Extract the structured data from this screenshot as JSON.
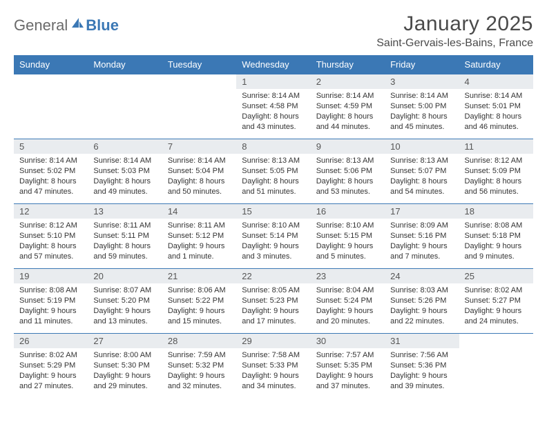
{
  "brand": {
    "general": "General",
    "blue": "Blue"
  },
  "title": "January 2025",
  "location": "Saint-Gervais-les-Bains, France",
  "colors": {
    "accent": "#3b78b5",
    "daynum_bg": "#e9ecef",
    "text": "#333333"
  },
  "weekdays": [
    "Sunday",
    "Monday",
    "Tuesday",
    "Wednesday",
    "Thursday",
    "Friday",
    "Saturday"
  ],
  "weeks": [
    [
      null,
      null,
      null,
      {
        "n": "1",
        "sr": "Sunrise: 8:14 AM",
        "ss": "Sunset: 4:58 PM",
        "d1": "Daylight: 8 hours",
        "d2": "and 43 minutes."
      },
      {
        "n": "2",
        "sr": "Sunrise: 8:14 AM",
        "ss": "Sunset: 4:59 PM",
        "d1": "Daylight: 8 hours",
        "d2": "and 44 minutes."
      },
      {
        "n": "3",
        "sr": "Sunrise: 8:14 AM",
        "ss": "Sunset: 5:00 PM",
        "d1": "Daylight: 8 hours",
        "d2": "and 45 minutes."
      },
      {
        "n": "4",
        "sr": "Sunrise: 8:14 AM",
        "ss": "Sunset: 5:01 PM",
        "d1": "Daylight: 8 hours",
        "d2": "and 46 minutes."
      }
    ],
    [
      {
        "n": "5",
        "sr": "Sunrise: 8:14 AM",
        "ss": "Sunset: 5:02 PM",
        "d1": "Daylight: 8 hours",
        "d2": "and 47 minutes."
      },
      {
        "n": "6",
        "sr": "Sunrise: 8:14 AM",
        "ss": "Sunset: 5:03 PM",
        "d1": "Daylight: 8 hours",
        "d2": "and 49 minutes."
      },
      {
        "n": "7",
        "sr": "Sunrise: 8:14 AM",
        "ss": "Sunset: 5:04 PM",
        "d1": "Daylight: 8 hours",
        "d2": "and 50 minutes."
      },
      {
        "n": "8",
        "sr": "Sunrise: 8:13 AM",
        "ss": "Sunset: 5:05 PM",
        "d1": "Daylight: 8 hours",
        "d2": "and 51 minutes."
      },
      {
        "n": "9",
        "sr": "Sunrise: 8:13 AM",
        "ss": "Sunset: 5:06 PM",
        "d1": "Daylight: 8 hours",
        "d2": "and 53 minutes."
      },
      {
        "n": "10",
        "sr": "Sunrise: 8:13 AM",
        "ss": "Sunset: 5:07 PM",
        "d1": "Daylight: 8 hours",
        "d2": "and 54 minutes."
      },
      {
        "n": "11",
        "sr": "Sunrise: 8:12 AM",
        "ss": "Sunset: 5:09 PM",
        "d1": "Daylight: 8 hours",
        "d2": "and 56 minutes."
      }
    ],
    [
      {
        "n": "12",
        "sr": "Sunrise: 8:12 AM",
        "ss": "Sunset: 5:10 PM",
        "d1": "Daylight: 8 hours",
        "d2": "and 57 minutes."
      },
      {
        "n": "13",
        "sr": "Sunrise: 8:11 AM",
        "ss": "Sunset: 5:11 PM",
        "d1": "Daylight: 8 hours",
        "d2": "and 59 minutes."
      },
      {
        "n": "14",
        "sr": "Sunrise: 8:11 AM",
        "ss": "Sunset: 5:12 PM",
        "d1": "Daylight: 9 hours",
        "d2": "and 1 minute."
      },
      {
        "n": "15",
        "sr": "Sunrise: 8:10 AM",
        "ss": "Sunset: 5:14 PM",
        "d1": "Daylight: 9 hours",
        "d2": "and 3 minutes."
      },
      {
        "n": "16",
        "sr": "Sunrise: 8:10 AM",
        "ss": "Sunset: 5:15 PM",
        "d1": "Daylight: 9 hours",
        "d2": "and 5 minutes."
      },
      {
        "n": "17",
        "sr": "Sunrise: 8:09 AM",
        "ss": "Sunset: 5:16 PM",
        "d1": "Daylight: 9 hours",
        "d2": "and 7 minutes."
      },
      {
        "n": "18",
        "sr": "Sunrise: 8:08 AM",
        "ss": "Sunset: 5:18 PM",
        "d1": "Daylight: 9 hours",
        "d2": "and 9 minutes."
      }
    ],
    [
      {
        "n": "19",
        "sr": "Sunrise: 8:08 AM",
        "ss": "Sunset: 5:19 PM",
        "d1": "Daylight: 9 hours",
        "d2": "and 11 minutes."
      },
      {
        "n": "20",
        "sr": "Sunrise: 8:07 AM",
        "ss": "Sunset: 5:20 PM",
        "d1": "Daylight: 9 hours",
        "d2": "and 13 minutes."
      },
      {
        "n": "21",
        "sr": "Sunrise: 8:06 AM",
        "ss": "Sunset: 5:22 PM",
        "d1": "Daylight: 9 hours",
        "d2": "and 15 minutes."
      },
      {
        "n": "22",
        "sr": "Sunrise: 8:05 AM",
        "ss": "Sunset: 5:23 PM",
        "d1": "Daylight: 9 hours",
        "d2": "and 17 minutes."
      },
      {
        "n": "23",
        "sr": "Sunrise: 8:04 AM",
        "ss": "Sunset: 5:24 PM",
        "d1": "Daylight: 9 hours",
        "d2": "and 20 minutes."
      },
      {
        "n": "24",
        "sr": "Sunrise: 8:03 AM",
        "ss": "Sunset: 5:26 PM",
        "d1": "Daylight: 9 hours",
        "d2": "and 22 minutes."
      },
      {
        "n": "25",
        "sr": "Sunrise: 8:02 AM",
        "ss": "Sunset: 5:27 PM",
        "d1": "Daylight: 9 hours",
        "d2": "and 24 minutes."
      }
    ],
    [
      {
        "n": "26",
        "sr": "Sunrise: 8:02 AM",
        "ss": "Sunset: 5:29 PM",
        "d1": "Daylight: 9 hours",
        "d2": "and 27 minutes."
      },
      {
        "n": "27",
        "sr": "Sunrise: 8:00 AM",
        "ss": "Sunset: 5:30 PM",
        "d1": "Daylight: 9 hours",
        "d2": "and 29 minutes."
      },
      {
        "n": "28",
        "sr": "Sunrise: 7:59 AM",
        "ss": "Sunset: 5:32 PM",
        "d1": "Daylight: 9 hours",
        "d2": "and 32 minutes."
      },
      {
        "n": "29",
        "sr": "Sunrise: 7:58 AM",
        "ss": "Sunset: 5:33 PM",
        "d1": "Daylight: 9 hours",
        "d2": "and 34 minutes."
      },
      {
        "n": "30",
        "sr": "Sunrise: 7:57 AM",
        "ss": "Sunset: 5:35 PM",
        "d1": "Daylight: 9 hours",
        "d2": "and 37 minutes."
      },
      {
        "n": "31",
        "sr": "Sunrise: 7:56 AM",
        "ss": "Sunset: 5:36 PM",
        "d1": "Daylight: 9 hours",
        "d2": "and 39 minutes."
      },
      null
    ]
  ]
}
